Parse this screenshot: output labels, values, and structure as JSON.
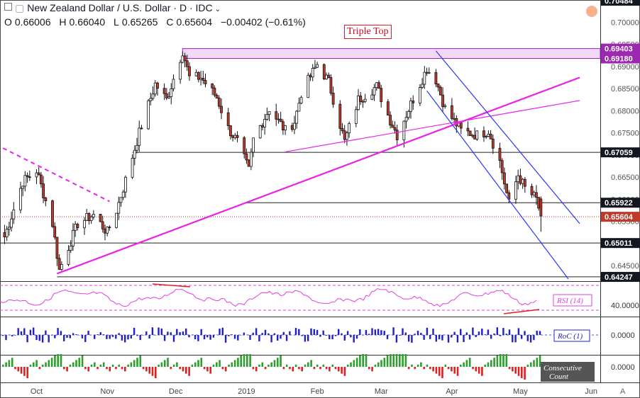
{
  "header": {
    "symbol": "New Zealand Dollar / U.S. Dollar · D · IDC",
    "ohlc": [
      {
        "k": "O",
        "v": "0.66006"
      },
      {
        "k": "H",
        "v": "0.66040"
      },
      {
        "k": "L",
        "v": "0.65265"
      },
      {
        "k": "C",
        "v": "0.65604"
      }
    ],
    "change": "−0.00402 (−0.61%)"
  },
  "annotation": "Triple Top",
  "chart_data": {
    "type": "candlestick",
    "title": "New Zealand Dollar / U.S. Dollar · D · IDC",
    "ylim": [
      0.6415,
      0.705
    ],
    "y_ticks": [
      0.645,
      0.65,
      0.655,
      0.66,
      0.665,
      0.67,
      0.675,
      0.68,
      0.685,
      0.69,
      0.695,
      0.7
    ],
    "y_tick_labels": [
      "0.64500",
      "0.65000",
      "0.65500",
      "0.66000",
      "0.66500",
      "0.67000",
      "0.67500",
      "0.68000",
      "0.68500",
      "0.69000",
      "0.69500",
      "0.70000"
    ],
    "x_labels": [
      "Oct",
      "Nov",
      "Dec",
      "2019",
      "Feb",
      "Mar",
      "Apr",
      "May",
      "Jun"
    ],
    "last_close": 0.65604,
    "up_color": "#26a69a",
    "down_color": "#ef5350",
    "price_labels": [
      {
        "text": "0.70484",
        "value": 0.70484,
        "style": "dark"
      },
      {
        "text": "0.69403",
        "value": 0.69403,
        "style": "magenta"
      },
      {
        "text": "0.69180",
        "value": 0.6918,
        "style": "magenta"
      },
      {
        "text": "0.67059",
        "value": 0.67059,
        "style": "dark"
      },
      {
        "text": "0.65922",
        "value": 0.65922,
        "style": "dark"
      },
      {
        "text": "0.65604",
        "value": 0.65604,
        "style": "red"
      },
      {
        "text": "0.65011",
        "value": 0.65011,
        "style": "dark"
      },
      {
        "text": "0.64247",
        "value": 0.64247,
        "style": "dark"
      }
    ],
    "horizontal_levels": [
      0.67059,
      0.65922,
      0.65011,
      0.64247
    ],
    "resistance_zone": [
      0.6918,
      0.69403
    ],
    "series_anchor_points": [
      [
        "2018-09-17",
        0.6515
      ],
      [
        "2018-09-25",
        0.664
      ],
      [
        "2018-10-01",
        0.6665
      ],
      [
        "2018-10-08",
        0.6545
      ],
      [
        "2018-10-11",
        0.644
      ],
      [
        "2018-10-19",
        0.6545
      ],
      [
        "2018-10-26",
        0.6565
      ],
      [
        "2018-11-01",
        0.6525
      ],
      [
        "2018-11-05",
        0.6575
      ],
      [
        "2018-11-08",
        0.6625
      ],
      [
        "2018-11-15",
        0.675
      ],
      [
        "2018-11-22",
        0.686
      ],
      [
        "2018-11-27",
        0.6825
      ],
      [
        "2018-12-04",
        0.6935
      ],
      [
        "2018-12-07",
        0.6875
      ],
      [
        "2018-12-12",
        0.6875
      ],
      [
        "2018-12-19",
        0.683
      ],
      [
        "2018-12-24",
        0.676
      ],
      [
        "2018-12-28",
        0.673
      ],
      [
        "2019-01-02",
        0.6665
      ],
      [
        "2019-01-04",
        0.6735
      ],
      [
        "2019-01-11",
        0.6805
      ],
      [
        "2019-01-18",
        0.6755
      ],
      [
        "2019-01-22",
        0.6775
      ],
      [
        "2019-01-25",
        0.684
      ],
      [
        "2019-02-01",
        0.6905
      ],
      [
        "2019-02-06",
        0.6865
      ],
      [
        "2019-02-13",
        0.673
      ],
      [
        "2019-02-19",
        0.6825
      ],
      [
        "2019-02-27",
        0.6855
      ],
      [
        "2019-03-04",
        0.679
      ],
      [
        "2019-03-08",
        0.6745
      ],
      [
        "2019-03-14",
        0.6815
      ],
      [
        "2019-03-21",
        0.6895
      ],
      [
        "2019-03-25",
        0.687
      ],
      [
        "2019-03-29",
        0.6805
      ],
      [
        "2019-04-05",
        0.6755
      ],
      [
        "2019-04-12",
        0.6745
      ],
      [
        "2019-04-17",
        0.6755
      ],
      [
        "2019-04-22",
        0.6685
      ],
      [
        "2019-04-26",
        0.659
      ],
      [
        "2019-04-30",
        0.6655
      ],
      [
        "2019-05-03",
        0.6625
      ],
      [
        "2019-05-08",
        0.66
      ],
      [
        "2019-05-10",
        0.6562
      ]
    ],
    "trendlines": [
      {
        "name": "rising support",
        "color": "#ea22ea",
        "points": [
          [
            "2018-10-10",
            0.6432
          ],
          [
            "2019-05-27",
            0.6875
          ]
        ]
      },
      {
        "name": "thin rising line",
        "color": "#ea22ea",
        "points": [
          [
            "2019-01-18",
            0.6707
          ],
          [
            "2019-05-27",
            0.6823
          ]
        ]
      },
      {
        "name": "descending resistance (dashed)",
        "color": "#ea22ea",
        "dashed": true,
        "points": [
          [
            "2018-09-01",
            0.6755
          ],
          [
            "2018-11-02",
            0.6595
          ]
        ]
      },
      {
        "name": "descending channel upper",
        "color": "#2a35ff",
        "points": [
          [
            "2019-03-25",
            0.6935
          ],
          [
            "2019-05-27",
            0.6545
          ]
        ]
      },
      {
        "name": "descending channel lower",
        "color": "#2a35ff",
        "points": [
          [
            "2019-03-21",
            0.6845
          ],
          [
            "2019-05-22",
            0.642
          ]
        ]
      }
    ],
    "indicators": [
      {
        "name": "RSI (14)",
        "value_label": "40.0000",
        "color": "#e040e0"
      },
      {
        "name": "RoC (1)",
        "value_label": "0.0000",
        "color": "#2020c8"
      },
      {
        "name": "Consecutive Count",
        "value_label": "0.0000",
        "up_color": "#2e9e2e",
        "down_color": "#e02020"
      }
    ],
    "grid": false
  }
}
